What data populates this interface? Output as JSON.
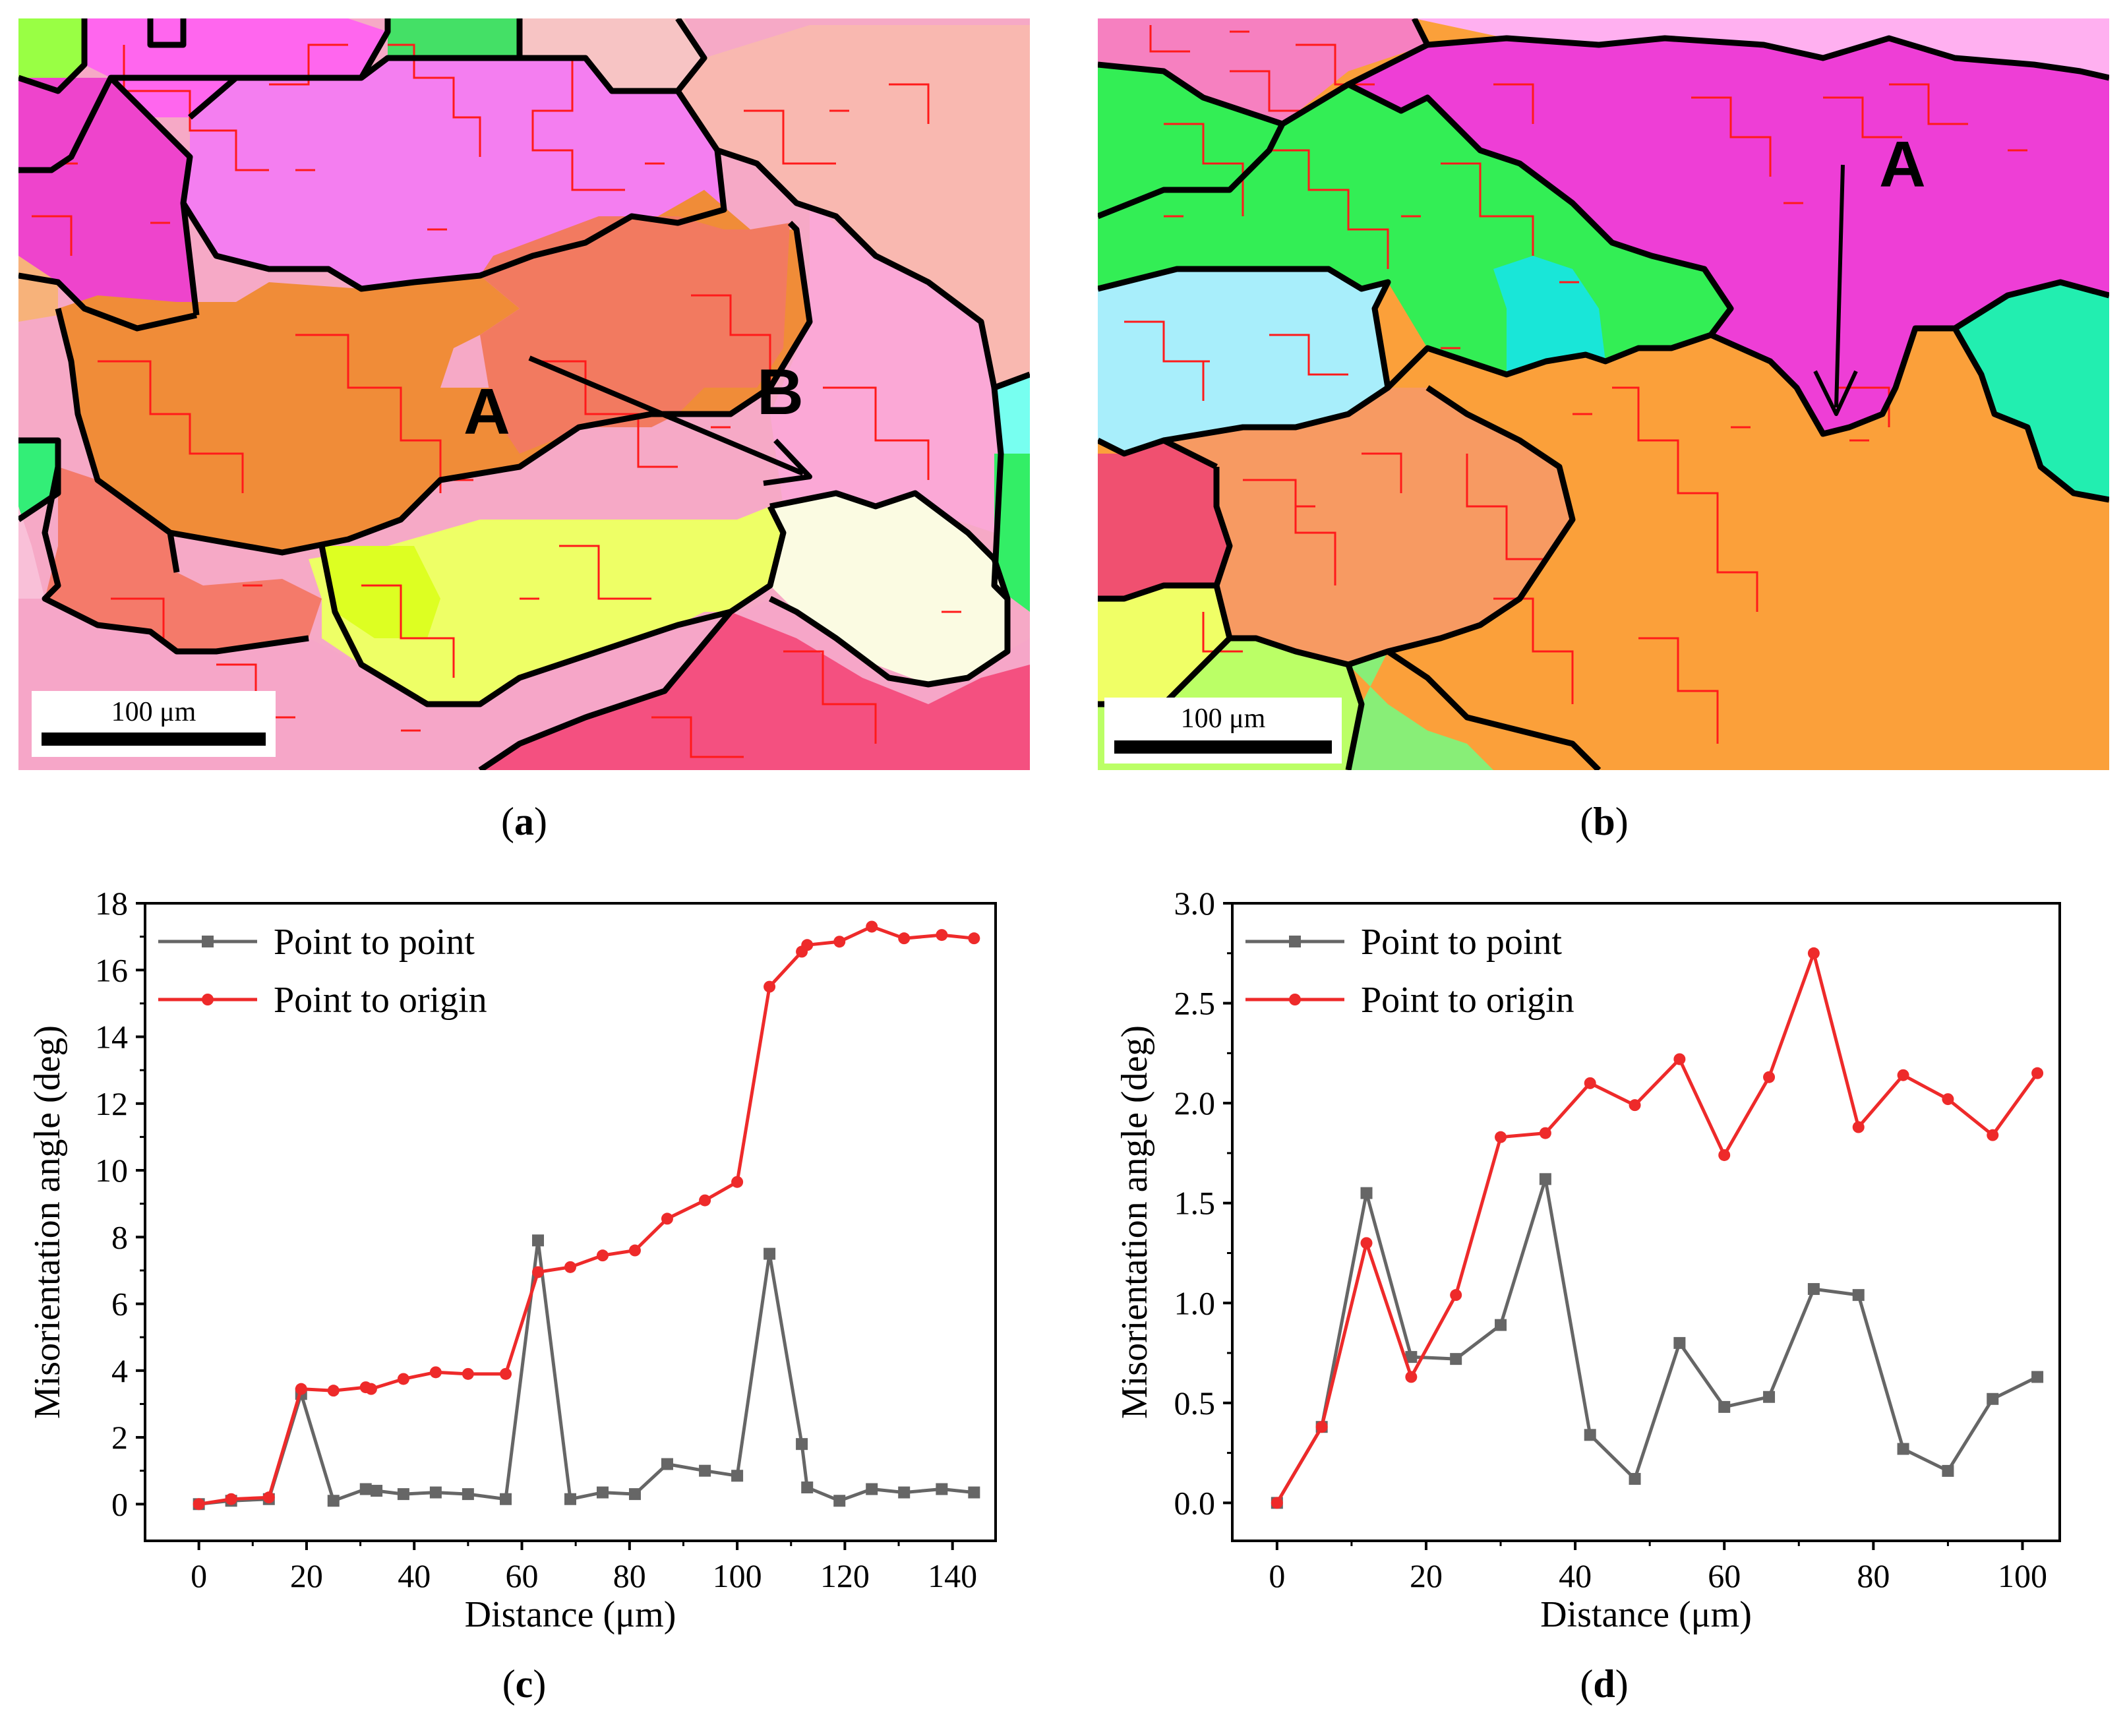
{
  "panels": {
    "a": {
      "caption_open": "(",
      "caption_letter": "a",
      "caption_close": ")",
      "label_a": "A",
      "label_b": "B",
      "scalebar": "100 μm"
    },
    "b": {
      "caption_open": "(",
      "caption_letter": "b",
      "caption_close": ")",
      "label_a": "A",
      "scalebar": "100 μm"
    },
    "c": {
      "caption_open": "(",
      "caption_letter": "c",
      "caption_close": ")"
    },
    "d": {
      "caption_open": "(",
      "caption_letter": "d",
      "caption_close": ")"
    }
  },
  "colors": {
    "point_to_point": "#666666",
    "point_to_origin": "#ee2a2a",
    "grain_boundary": "#000000",
    "subgrain_boundary": "#ff0000"
  },
  "chart_data": [
    {
      "id": "c",
      "type": "line",
      "xlabel": "Distance (μm)",
      "ylabel": "Misorientation angle (deg)",
      "xlim": [
        -10,
        148
      ],
      "ylim": [
        -1.1,
        18
      ],
      "xticks": [
        0,
        20,
        40,
        60,
        80,
        100,
        120,
        140
      ],
      "yticks": [
        0,
        2,
        4,
        6,
        8,
        10,
        12,
        14,
        16,
        18
      ],
      "legend": "top-left",
      "series": [
        {
          "name": "Point to point",
          "marker": "square",
          "x": [
            0,
            6,
            13,
            19,
            25,
            31,
            33,
            38,
            44,
            50,
            57,
            63,
            69,
            75,
            81,
            87,
            94,
            100,
            106,
            112,
            113,
            119,
            125,
            131,
            138,
            144
          ],
          "y": [
            0,
            0.1,
            0.15,
            3.3,
            0.1,
            0.45,
            0.4,
            0.3,
            0.35,
            0.3,
            0.15,
            7.9,
            0.15,
            0.35,
            0.3,
            1.2,
            1.0,
            0.85,
            7.5,
            1.8,
            0.5,
            0.1,
            0.45,
            0.35,
            0.45,
            0.35
          ]
        },
        {
          "name": "Point to origin",
          "marker": "circle",
          "x": [
            0,
            6,
            13,
            19,
            25,
            31,
            32,
            38,
            44,
            50,
            57,
            63,
            69,
            75,
            81,
            87,
            94,
            100,
            106,
            112,
            113,
            119,
            125,
            131,
            138,
            144
          ],
          "y": [
            0,
            0.15,
            0.2,
            3.45,
            3.4,
            3.5,
            3.45,
            3.75,
            3.95,
            3.9,
            3.9,
            6.95,
            7.1,
            7.45,
            7.6,
            8.55,
            9.1,
            9.65,
            15.5,
            16.55,
            16.75,
            16.85,
            17.3,
            16.95,
            17.05,
            16.95
          ]
        }
      ]
    },
    {
      "id": "d",
      "type": "line",
      "xlabel": "Distance (μm)",
      "ylabel": "Misorientation angle (deg)",
      "xlim": [
        -6,
        105
      ],
      "ylim": [
        -0.19,
        3.0
      ],
      "xticks": [
        0,
        20,
        40,
        60,
        80,
        100
      ],
      "yticks": [
        0.0,
        0.5,
        1.0,
        1.5,
        2.0,
        2.5,
        3.0
      ],
      "ytick_labels": [
        "0.0",
        "0.5",
        "1.0",
        "1.5",
        "2.0",
        "2.5",
        "3.0"
      ],
      "legend": "top-left",
      "series": [
        {
          "name": "Point to point",
          "marker": "square",
          "x": [
            0,
            6,
            12,
            18,
            24,
            30,
            36,
            42,
            48,
            54,
            60,
            66,
            72,
            78,
            84,
            90,
            96,
            102
          ],
          "y": [
            0,
            0.38,
            1.55,
            0.73,
            0.72,
            0.89,
            1.62,
            0.34,
            0.12,
            0.8,
            0.48,
            0.53,
            1.07,
            1.04,
            0.27,
            0.16,
            0.52,
            0.63
          ]
        },
        {
          "name": "Point to origin",
          "marker": "circle",
          "x": [
            0,
            6,
            12,
            18,
            24,
            30,
            36,
            42,
            48,
            54,
            60,
            66,
            72,
            78,
            84,
            90,
            96,
            102
          ],
          "y": [
            0,
            0.38,
            1.3,
            0.63,
            1.04,
            1.83,
            1.85,
            2.1,
            1.99,
            2.22,
            1.74,
            2.13,
            2.75,
            1.88,
            2.14,
            2.02,
            1.84,
            2.15
          ]
        }
      ]
    }
  ]
}
